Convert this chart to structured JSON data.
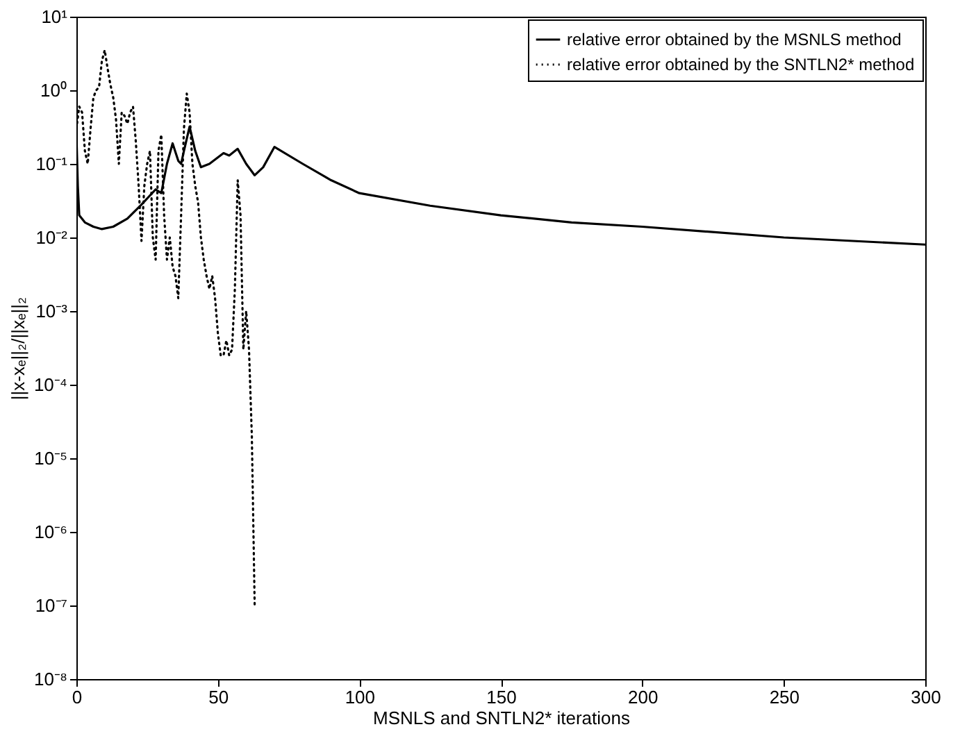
{
  "chart_data": {
    "type": "line",
    "xlabel": "MSNLS and SNTLN2* iterations",
    "ylabel": "||x-xₑ||₂/||xₑ||₂",
    "log": "y",
    "xlim": [
      0,
      300
    ],
    "xticks": [
      0,
      50,
      100,
      150,
      200,
      250,
      300
    ],
    "ylim": [
      1e-08,
      10
    ],
    "yticks": [
      {
        "value": 1e-08,
        "label": "10⁻⁸"
      },
      {
        "value": 1e-07,
        "label": "10⁻⁷"
      },
      {
        "value": 1e-06,
        "label": "10⁻⁶"
      },
      {
        "value": 1e-05,
        "label": "10⁻⁵"
      },
      {
        "value": 0.0001,
        "label": "10⁻⁴"
      },
      {
        "value": 0.001,
        "label": "10⁻³"
      },
      {
        "value": 0.01,
        "label": "10⁻²"
      },
      {
        "value": 0.1,
        "label": "10⁻¹"
      },
      {
        "value": 1,
        "label": "10⁰"
      },
      {
        "value": 10,
        "label": "10¹"
      }
    ],
    "grid": false,
    "legend": "top right",
    "marker": "none",
    "series": [
      {
        "name": "relative error obtained by the MSNLS method",
        "color": "#000000",
        "line_style": "solid",
        "x": [
          0,
          0.5,
          1,
          3,
          6,
          9,
          13,
          18,
          23,
          28,
          30,
          32,
          34,
          36,
          37,
          38,
          40,
          42,
          44,
          47,
          52,
          54,
          57,
          60,
          63,
          66,
          70,
          80,
          90,
          100,
          125,
          150,
          175,
          200,
          250,
          300
        ],
        "values": [
          0.25,
          0.05,
          0.02,
          0.016,
          0.014,
          0.013,
          0.014,
          0.018,
          0.028,
          0.045,
          0.04,
          0.1,
          0.19,
          0.11,
          0.1,
          0.15,
          0.32,
          0.15,
          0.09,
          0.1,
          0.14,
          0.13,
          0.16,
          0.1,
          0.07,
          0.09,
          0.17,
          0.1,
          0.06,
          0.04,
          0.027,
          0.02,
          0.016,
          0.014,
          0.01,
          0.008
        ]
      },
      {
        "name": "relative error obtained by the SNTLN2* method",
        "color": "#000000",
        "line_style": "dotted",
        "x": [
          0,
          1,
          2,
          3,
          4,
          5,
          6,
          7,
          8,
          9,
          10,
          11,
          12,
          13,
          14,
          15,
          16,
          17,
          18,
          19,
          20,
          21,
          22,
          23,
          24,
          25,
          26,
          27,
          28,
          29,
          30,
          31,
          32,
          33,
          34,
          35,
          36,
          37,
          38,
          39,
          40,
          41,
          42,
          43,
          44,
          45,
          46,
          47,
          48,
          49,
          50,
          51,
          52,
          53,
          54,
          55,
          56,
          57,
          58,
          59,
          60,
          61,
          62,
          63
        ],
        "values": [
          0.3,
          0.6,
          0.5,
          0.15,
          0.1,
          0.3,
          0.8,
          1.0,
          1.1,
          2.5,
          3.5,
          2.0,
          1.2,
          0.8,
          0.4,
          0.1,
          0.5,
          0.45,
          0.35,
          0.5,
          0.6,
          0.2,
          0.05,
          0.009,
          0.05,
          0.1,
          0.15,
          0.01,
          0.005,
          0.15,
          0.25,
          0.02,
          0.005,
          0.01,
          0.004,
          0.003,
          0.0015,
          0.02,
          0.3,
          0.9,
          0.5,
          0.1,
          0.05,
          0.03,
          0.01,
          0.005,
          0.003,
          0.002,
          0.003,
          0.0015,
          0.0005,
          0.00025,
          0.00025,
          0.0004,
          0.00025,
          0.0003,
          0.002,
          0.06,
          0.02,
          0.0003,
          0.001,
          0.0003,
          2e-05,
          1e-07
        ]
      }
    ]
  }
}
